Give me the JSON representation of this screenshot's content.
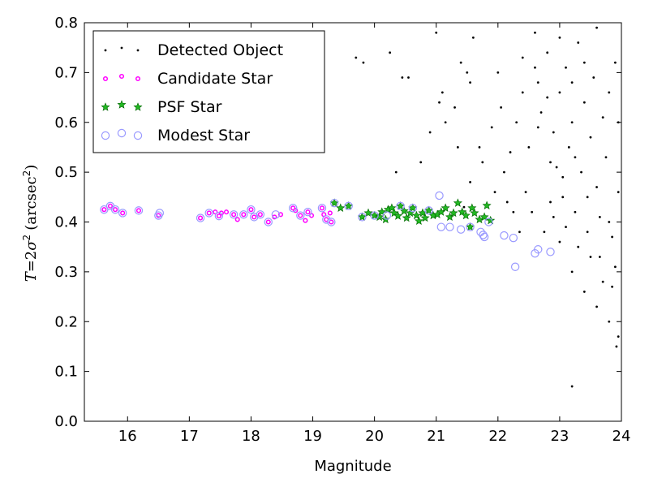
{
  "chart_data": {
    "type": "scatter",
    "xlabel": "Magnitude",
    "ylabel_parts": {
      "prefix": "T",
      "eq": "=2",
      "sigma": "σ",
      "sup": "2",
      "unit": "(arcsec",
      "unit_sup": "2",
      "unit_close": ")"
    },
    "xlim": [
      15.3,
      24
    ],
    "ylim": [
      0.0,
      0.8
    ],
    "x_ticks": [
      "16",
      "17",
      "18",
      "19",
      "20",
      "21",
      "22",
      "23",
      "24"
    ],
    "y_ticks": [
      "0.0",
      "0.1",
      "0.2",
      "0.3",
      "0.4",
      "0.5",
      "0.6",
      "0.7",
      "0.8"
    ],
    "legend_placement": "top-left",
    "grid": false,
    "colors": {
      "detected": "#000000",
      "candidate_edge": "#ff00ff",
      "psf_fill": "#22b822",
      "psf_edge": "#006400",
      "modest": "#9999ff"
    },
    "series": [
      {
        "name": "Detected Object",
        "marker": "dot",
        "points": [
          [
            19.7,
            0.73
          ],
          [
            19.82,
            0.72
          ],
          [
            20.25,
            0.74
          ],
          [
            20.45,
            0.69
          ],
          [
            20.55,
            0.69
          ],
          [
            21.0,
            0.78
          ],
          [
            21.05,
            0.64
          ],
          [
            21.3,
            0.63
          ],
          [
            21.1,
            0.66
          ],
          [
            21.15,
            0.6
          ],
          [
            20.9,
            0.58
          ],
          [
            20.75,
            0.52
          ],
          [
            20.35,
            0.5
          ],
          [
            21.4,
            0.72
          ],
          [
            21.5,
            0.7
          ],
          [
            21.6,
            0.77
          ],
          [
            21.7,
            0.55
          ],
          [
            21.75,
            0.52
          ],
          [
            21.35,
            0.55
          ],
          [
            21.55,
            0.48
          ],
          [
            21.9,
            0.59
          ],
          [
            22.0,
            0.7
          ],
          [
            22.05,
            0.63
          ],
          [
            22.3,
            0.6
          ],
          [
            22.4,
            0.73
          ],
          [
            22.1,
            0.5
          ],
          [
            22.2,
            0.54
          ],
          [
            22.45,
            0.46
          ],
          [
            22.5,
            0.55
          ],
          [
            22.6,
            0.78
          ],
          [
            22.65,
            0.68
          ],
          [
            22.7,
            0.62
          ],
          [
            22.8,
            0.74
          ],
          [
            22.9,
            0.58
          ],
          [
            22.95,
            0.51
          ],
          [
            23.0,
            0.66
          ],
          [
            23.05,
            0.45
          ],
          [
            23.1,
            0.71
          ],
          [
            23.15,
            0.55
          ],
          [
            23.2,
            0.6
          ],
          [
            23.25,
            0.42
          ],
          [
            23.3,
            0.76
          ],
          [
            23.35,
            0.5
          ],
          [
            23.4,
            0.64
          ],
          [
            23.45,
            0.38
          ],
          [
            23.5,
            0.57
          ],
          [
            23.55,
            0.69
          ],
          [
            23.6,
            0.47
          ],
          [
            23.65,
            0.33
          ],
          [
            23.7,
            0.61
          ],
          [
            23.75,
            0.53
          ],
          [
            23.8,
            0.4
          ],
          [
            23.85,
            0.27
          ],
          [
            23.9,
            0.72
          ],
          [
            23.95,
            0.46
          ],
          [
            22.55,
            0.42
          ],
          [
            22.75,
            0.38
          ],
          [
            22.85,
            0.44
          ],
          [
            23.0,
            0.36
          ],
          [
            23.2,
            0.3
          ],
          [
            23.4,
            0.26
          ],
          [
            23.6,
            0.23
          ],
          [
            23.8,
            0.2
          ],
          [
            23.95,
            0.17
          ],
          [
            23.9,
            0.31
          ],
          [
            23.7,
            0.28
          ],
          [
            23.5,
            0.33
          ],
          [
            23.3,
            0.35
          ],
          [
            23.1,
            0.39
          ],
          [
            22.9,
            0.41
          ],
          [
            22.35,
            0.38
          ],
          [
            22.25,
            0.42
          ],
          [
            22.15,
            0.44
          ],
          [
            23.2,
            0.07
          ],
          [
            23.92,
            0.15
          ],
          [
            21.95,
            0.46
          ],
          [
            21.45,
            0.43
          ],
          [
            21.55,
            0.68
          ],
          [
            22.65,
            0.59
          ],
          [
            22.85,
            0.52
          ],
          [
            23.05,
            0.49
          ],
          [
            23.25,
            0.53
          ],
          [
            23.45,
            0.45
          ],
          [
            23.65,
            0.41
          ],
          [
            23.85,
            0.37
          ],
          [
            22.4,
            0.66
          ],
          [
            22.6,
            0.71
          ],
          [
            22.8,
            0.65
          ],
          [
            23.0,
            0.77
          ],
          [
            23.2,
            0.68
          ],
          [
            23.4,
            0.72
          ],
          [
            23.6,
            0.79
          ],
          [
            23.8,
            0.66
          ],
          [
            23.95,
            0.6
          ]
        ]
      },
      {
        "name": "Candidate Star",
        "marker": "small-circle",
        "points": [
          [
            15.62,
            0.425
          ],
          [
            15.72,
            0.432
          ],
          [
            15.8,
            0.425
          ],
          [
            15.92,
            0.418
          ],
          [
            16.18,
            0.423
          ],
          [
            16.5,
            0.413
          ],
          [
            17.18,
            0.408
          ],
          [
            17.32,
            0.418
          ],
          [
            17.42,
            0.42
          ],
          [
            17.48,
            0.412
          ],
          [
            17.52,
            0.418
          ],
          [
            17.6,
            0.42
          ],
          [
            17.72,
            0.415
          ],
          [
            17.78,
            0.405
          ],
          [
            17.88,
            0.415
          ],
          [
            18.0,
            0.425
          ],
          [
            18.05,
            0.41
          ],
          [
            18.15,
            0.415
          ],
          [
            18.28,
            0.4
          ],
          [
            18.38,
            0.41
          ],
          [
            18.48,
            0.415
          ],
          [
            18.68,
            0.428
          ],
          [
            18.72,
            0.423
          ],
          [
            18.8,
            0.413
          ],
          [
            18.88,
            0.403
          ],
          [
            18.92,
            0.42
          ],
          [
            18.98,
            0.413
          ],
          [
            19.15,
            0.428
          ],
          [
            19.18,
            0.415
          ],
          [
            19.22,
            0.405
          ],
          [
            19.28,
            0.418
          ],
          [
            19.3,
            0.4
          ]
        ]
      },
      {
        "name": "PSF Star",
        "marker": "star",
        "points": [
          [
            19.35,
            0.438
          ],
          [
            19.45,
            0.428
          ],
          [
            19.58,
            0.432
          ],
          [
            19.8,
            0.41
          ],
          [
            19.9,
            0.418
          ],
          [
            20.0,
            0.413
          ],
          [
            20.08,
            0.41
          ],
          [
            20.12,
            0.42
          ],
          [
            20.18,
            0.405
          ],
          [
            20.22,
            0.425
          ],
          [
            20.28,
            0.428
          ],
          [
            20.32,
            0.418
          ],
          [
            20.38,
            0.412
          ],
          [
            20.42,
            0.432
          ],
          [
            20.48,
            0.422
          ],
          [
            20.52,
            0.408
          ],
          [
            20.58,
            0.418
          ],
          [
            20.62,
            0.428
          ],
          [
            20.68,
            0.413
          ],
          [
            20.72,
            0.402
          ],
          [
            20.78,
            0.418
          ],
          [
            20.82,
            0.408
          ],
          [
            20.88,
            0.423
          ],
          [
            20.95,
            0.413
          ],
          [
            21.02,
            0.415
          ],
          [
            21.08,
            0.42
          ],
          [
            21.15,
            0.428
          ],
          [
            21.22,
            0.41
          ],
          [
            21.28,
            0.418
          ],
          [
            21.35,
            0.438
          ],
          [
            21.42,
            0.42
          ],
          [
            21.48,
            0.413
          ],
          [
            21.55,
            0.39
          ],
          [
            21.58,
            0.428
          ],
          [
            21.62,
            0.418
          ],
          [
            21.7,
            0.405
          ],
          [
            21.78,
            0.41
          ],
          [
            21.82,
            0.433
          ],
          [
            21.88,
            0.403
          ]
        ]
      },
      {
        "name": "Modest Star",
        "marker": "open-circle",
        "points": [
          [
            15.62,
            0.425
          ],
          [
            15.72,
            0.432
          ],
          [
            15.8,
            0.425
          ],
          [
            15.92,
            0.418
          ],
          [
            16.18,
            0.423
          ],
          [
            16.5,
            0.413
          ],
          [
            16.52,
            0.418
          ],
          [
            17.18,
            0.408
          ],
          [
            17.32,
            0.418
          ],
          [
            17.48,
            0.412
          ],
          [
            17.72,
            0.415
          ],
          [
            17.88,
            0.415
          ],
          [
            18.0,
            0.425
          ],
          [
            18.05,
            0.41
          ],
          [
            18.15,
            0.415
          ],
          [
            18.28,
            0.4
          ],
          [
            18.4,
            0.415
          ],
          [
            18.68,
            0.428
          ],
          [
            18.8,
            0.413
          ],
          [
            18.92,
            0.42
          ],
          [
            19.15,
            0.428
          ],
          [
            19.22,
            0.405
          ],
          [
            19.3,
            0.4
          ],
          [
            19.35,
            0.438
          ],
          [
            19.58,
            0.432
          ],
          [
            19.8,
            0.41
          ],
          [
            20.0,
            0.413
          ],
          [
            20.2,
            0.413
          ],
          [
            20.42,
            0.432
          ],
          [
            20.62,
            0.428
          ],
          [
            20.88,
            0.423
          ],
          [
            21.05,
            0.453
          ],
          [
            21.08,
            0.39
          ],
          [
            21.22,
            0.39
          ],
          [
            21.4,
            0.385
          ],
          [
            21.55,
            0.39
          ],
          [
            21.72,
            0.38
          ],
          [
            21.76,
            0.374
          ],
          [
            21.78,
            0.37
          ],
          [
            21.85,
            0.4
          ],
          [
            22.1,
            0.373
          ],
          [
            22.25,
            0.368
          ],
          [
            22.28,
            0.31
          ],
          [
            22.6,
            0.337
          ],
          [
            22.65,
            0.345
          ],
          [
            22.85,
            0.34
          ]
        ]
      }
    ]
  }
}
